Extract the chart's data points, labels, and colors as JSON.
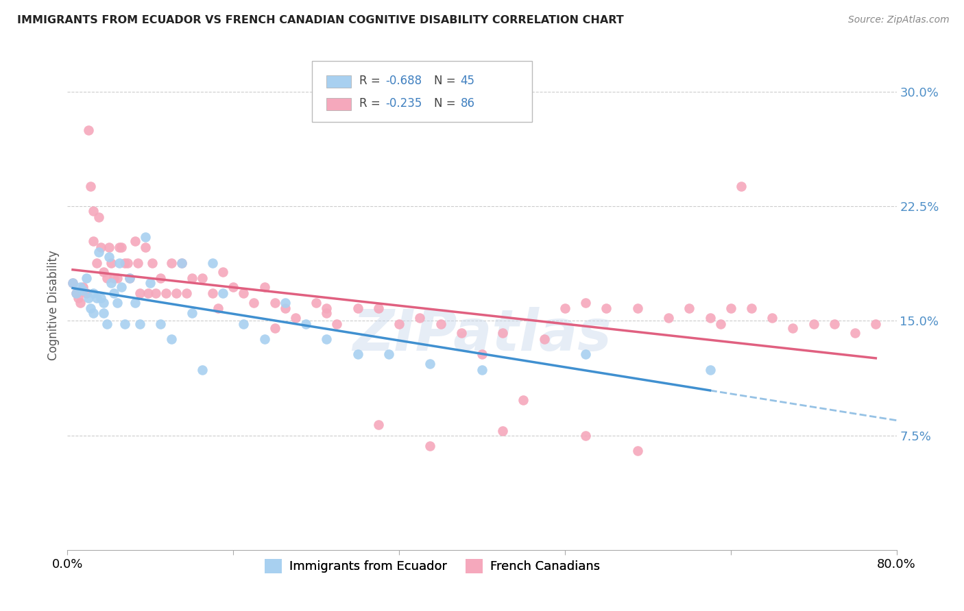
{
  "title": "IMMIGRANTS FROM ECUADOR VS FRENCH CANADIAN COGNITIVE DISABILITY CORRELATION CHART",
  "source": "Source: ZipAtlas.com",
  "ylabel": "Cognitive Disability",
  "xlim": [
    0.0,
    0.8
  ],
  "ylim": [
    0.0,
    0.32
  ],
  "yticks": [
    0.075,
    0.15,
    0.225,
    0.3
  ],
  "ytick_labels": [
    "7.5%",
    "15.0%",
    "22.5%",
    "30.0%"
  ],
  "xticks": [
    0.0,
    0.16,
    0.32,
    0.48,
    0.64,
    0.8
  ],
  "xtick_labels": [
    "0.0%",
    "",
    "",
    "",
    "",
    "80.0%"
  ],
  "ecuador_R": -0.688,
  "ecuador_N": 45,
  "french_R": -0.235,
  "french_N": 86,
  "ecuador_color": "#A8D0F0",
  "french_color": "#F5A8BC",
  "ecuador_line_color": "#4090D0",
  "french_line_color": "#E06080",
  "watermark": "ZIPatlas",
  "background_color": "#FFFFFF",
  "ecuador_x": [
    0.005,
    0.008,
    0.012,
    0.015,
    0.018,
    0.02,
    0.022,
    0.025,
    0.025,
    0.028,
    0.03,
    0.032,
    0.035,
    0.035,
    0.038,
    0.04,
    0.042,
    0.045,
    0.048,
    0.05,
    0.052,
    0.055,
    0.06,
    0.065,
    0.07,
    0.075,
    0.08,
    0.09,
    0.1,
    0.11,
    0.12,
    0.13,
    0.14,
    0.15,
    0.17,
    0.19,
    0.21,
    0.23,
    0.25,
    0.28,
    0.31,
    0.35,
    0.4,
    0.5,
    0.62
  ],
  "ecuador_y": [
    0.175,
    0.168,
    0.172,
    0.17,
    0.178,
    0.165,
    0.158,
    0.168,
    0.155,
    0.165,
    0.195,
    0.165,
    0.162,
    0.155,
    0.148,
    0.192,
    0.175,
    0.168,
    0.162,
    0.188,
    0.172,
    0.148,
    0.178,
    0.162,
    0.148,
    0.205,
    0.175,
    0.148,
    0.138,
    0.188,
    0.155,
    0.118,
    0.188,
    0.168,
    0.148,
    0.138,
    0.162,
    0.148,
    0.138,
    0.128,
    0.128,
    0.122,
    0.118,
    0.128,
    0.118
  ],
  "french_x": [
    0.005,
    0.008,
    0.01,
    0.012,
    0.015,
    0.018,
    0.02,
    0.022,
    0.025,
    0.025,
    0.028,
    0.03,
    0.032,
    0.035,
    0.038,
    0.04,
    0.042,
    0.045,
    0.048,
    0.05,
    0.052,
    0.055,
    0.058,
    0.06,
    0.065,
    0.068,
    0.07,
    0.075,
    0.078,
    0.082,
    0.085,
    0.09,
    0.095,
    0.1,
    0.105,
    0.11,
    0.115,
    0.12,
    0.13,
    0.14,
    0.145,
    0.15,
    0.16,
    0.17,
    0.18,
    0.19,
    0.2,
    0.21,
    0.22,
    0.24,
    0.25,
    0.26,
    0.28,
    0.3,
    0.32,
    0.34,
    0.36,
    0.38,
    0.4,
    0.42,
    0.44,
    0.46,
    0.48,
    0.5,
    0.52,
    0.55,
    0.58,
    0.6,
    0.62,
    0.64,
    0.66,
    0.68,
    0.7,
    0.72,
    0.74,
    0.76,
    0.78,
    0.35,
    0.3,
    0.42,
    0.63,
    0.65,
    0.5,
    0.55,
    0.2,
    0.25
  ],
  "french_y": [
    0.175,
    0.168,
    0.165,
    0.162,
    0.172,
    0.168,
    0.275,
    0.238,
    0.222,
    0.202,
    0.188,
    0.218,
    0.198,
    0.182,
    0.178,
    0.198,
    0.188,
    0.178,
    0.178,
    0.198,
    0.198,
    0.188,
    0.188,
    0.178,
    0.202,
    0.188,
    0.168,
    0.198,
    0.168,
    0.188,
    0.168,
    0.178,
    0.168,
    0.188,
    0.168,
    0.188,
    0.168,
    0.178,
    0.178,
    0.168,
    0.158,
    0.182,
    0.172,
    0.168,
    0.162,
    0.172,
    0.162,
    0.158,
    0.152,
    0.162,
    0.158,
    0.148,
    0.158,
    0.158,
    0.148,
    0.152,
    0.148,
    0.142,
    0.128,
    0.142,
    0.098,
    0.138,
    0.158,
    0.162,
    0.158,
    0.158,
    0.152,
    0.158,
    0.152,
    0.158,
    0.158,
    0.152,
    0.145,
    0.148,
    0.148,
    0.142,
    0.148,
    0.068,
    0.082,
    0.078,
    0.148,
    0.238,
    0.075,
    0.065,
    0.145,
    0.155
  ]
}
